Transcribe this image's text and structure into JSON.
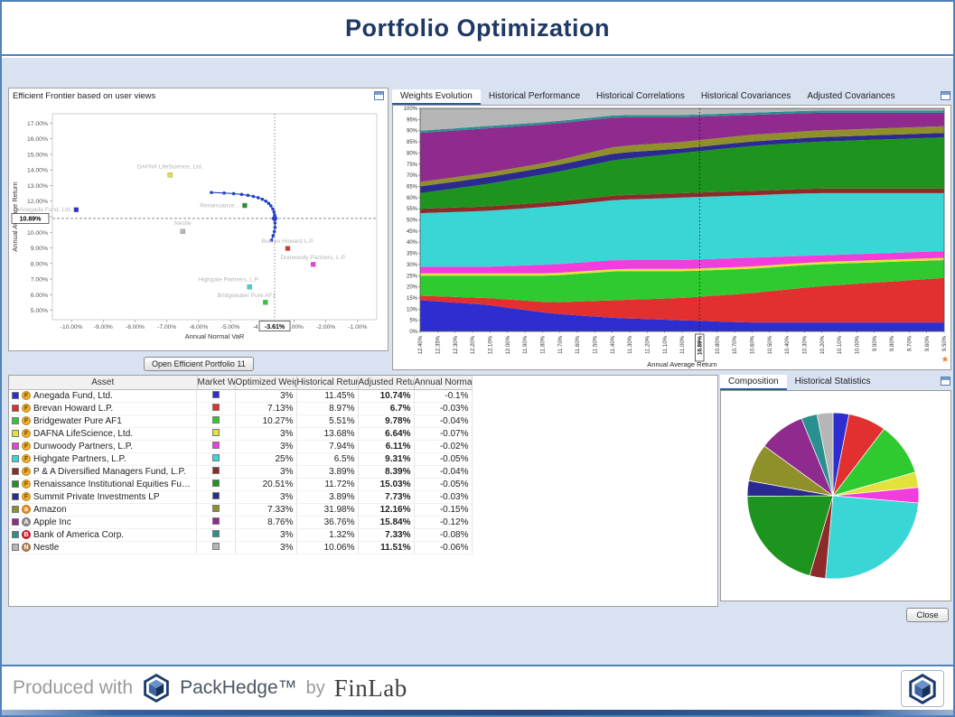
{
  "window": {
    "title": "Portfolio Optimization",
    "close_button": "Close",
    "footer": {
      "produced_with": "Produced with",
      "product": "PackHedge™",
      "by": "by",
      "company": "FinLab"
    }
  },
  "frontier": {
    "panel_title": "Efficient Frontier based on user views",
    "open_button": "Open Efficient Portfolio 11",
    "chart_data": {
      "type": "scatter",
      "xlabel": "Annual Normal VaR",
      "ylabel": "Annual Average Return",
      "xlim": [
        -10.6,
        -0.4
      ],
      "ylim": [
        4.4,
        17.6
      ],
      "x_ticks": [
        -10,
        -9,
        -8,
        -7,
        -6,
        -5,
        -4,
        -3,
        -2,
        -1
      ],
      "y_ticks": [
        17,
        16,
        15,
        14,
        13,
        12,
        11,
        10,
        9,
        8,
        7,
        6,
        5
      ],
      "highlight": {
        "x": -3.61,
        "y": 10.89,
        "x_label": "-3.61%",
        "y_label": "10.89%"
      },
      "points": [
        {
          "label": "Anegada Fund, Ltd.",
          "x": -9.85,
          "y": 11.45,
          "color": "#2d2dd0",
          "anchor": "end",
          "ldx": -5,
          "ldy": 2
        },
        {
          "label": "DAFNA LifeScience, Ltd.",
          "x": -6.9,
          "y": 13.68,
          "color": "#e2e23a",
          "ldy": -7
        },
        {
          "label": "Renaissance...",
          "x": -4.55,
          "y": 11.72,
          "color": "#1d941d",
          "anchor": "end",
          "ldx": -6,
          "ldy": 2
        },
        {
          "label": "Nestle",
          "x": -6.5,
          "y": 10.06,
          "color": "#b6b6b6",
          "ldy": -7
        },
        {
          "label": "Brevan Howard L.P.",
          "x": -3.2,
          "y": 8.97,
          "color": "#e23030",
          "ldy": -6
        },
        {
          "label": "Dunwoody Partners, L.P.",
          "x": -2.4,
          "y": 7.94,
          "color": "#f23cdc",
          "ldy": -6
        },
        {
          "label": "Highgate Partners, L.P.",
          "x": -4.4,
          "y": 6.5,
          "color": "#3ad6d6",
          "ldx": -23,
          "ldy": -6
        },
        {
          "label": "Bridgewater Pure AF1",
          "x": -3.9,
          "y": 5.51,
          "color": "#2fca2f",
          "ldx": -21,
          "ldy": -6
        }
      ],
      "frontier_line": [
        [
          -5.6,
          12.55
        ],
        [
          -5.2,
          12.52
        ],
        [
          -4.9,
          12.48
        ],
        [
          -4.65,
          12.43
        ],
        [
          -4.45,
          12.37
        ],
        [
          -4.28,
          12.3
        ],
        [
          -4.13,
          12.22
        ],
        [
          -4.0,
          12.12
        ],
        [
          -3.89,
          12.0
        ],
        [
          -3.8,
          11.86
        ],
        [
          -3.73,
          11.7
        ],
        [
          -3.67,
          11.5
        ],
        [
          -3.63,
          11.3
        ],
        [
          -3.61,
          11.1
        ],
        [
          -3.61,
          10.89
        ],
        [
          -3.6,
          10.6
        ],
        [
          -3.6,
          10.32
        ],
        [
          -3.62,
          10.05
        ],
        [
          -3.66,
          9.78
        ],
        [
          -3.71,
          9.5
        ]
      ]
    }
  },
  "weights": {
    "tabs": [
      "Weights Evolution",
      "Historical Performance",
      "Historical Correlations",
      "Historical Covariances",
      "Adjusted Covariances"
    ],
    "selected_tab": 0,
    "chart_data": {
      "type": "area",
      "stacked_percent": true,
      "xlabel": "Annual Average Return",
      "y_ticks": [
        "0%",
        "5%",
        "10%",
        "15%",
        "20%",
        "25%",
        "30%",
        "35%",
        "40%",
        "45%",
        "50%",
        "55%",
        "60%",
        "65%",
        "70%",
        "75%",
        "80%",
        "85%",
        "90%",
        "95%",
        "100%"
      ],
      "x_ticks": [
        "12.40%",
        "12.35%",
        "12.30%",
        "12.20%",
        "12.10%",
        "12.00%",
        "11.90%",
        "11.80%",
        "11.70%",
        "11.60%",
        "11.50%",
        "11.40%",
        "11.30%",
        "11.20%",
        "11.10%",
        "11.00%",
        "10.89%",
        "10.80%",
        "10.70%",
        "10.60%",
        "10.50%",
        "10.40%",
        "10.30%",
        "10.20%",
        "10.10%",
        "10.00%",
        "9.90%",
        "9.80%",
        "9.70%",
        "9.60%",
        "9.50%"
      ],
      "highlight_tick_index": 16,
      "sample_note": "series values are weight percentages sampled evenly across the x range, stacked to 100%",
      "series": [
        {
          "name": "Anegada Fund, Ltd.",
          "color": "#2d2dd0",
          "values": [
            14,
            12,
            8,
            6,
            5,
            4,
            4,
            4,
            4
          ]
        },
        {
          "name": "Brevan Howard L.P.",
          "color": "#e23030",
          "values": [
            2,
            3,
            5,
            8,
            10,
            13,
            16,
            18,
            20
          ]
        },
        {
          "name": "Bridgewater Pure AF1",
          "color": "#2fca2f",
          "values": [
            9,
            10,
            12,
            13,
            12,
            11,
            10,
            9,
            8
          ]
        },
        {
          "name": "DAFNA LifeScience, Ltd.",
          "color": "#e2e23a",
          "values": [
            1,
            1,
            1,
            1,
            1,
            1,
            1,
            1,
            1
          ]
        },
        {
          "name": "Dunwoody Partners, L.P.",
          "color": "#f23cdc",
          "values": [
            3,
            3,
            4,
            4,
            4,
            4,
            3,
            3,
            3
          ]
        },
        {
          "name": "Highgate Partners, L.P.",
          "color": "#3ad6d6",
          "values": [
            24,
            25,
            26,
            27,
            28,
            28,
            28,
            27,
            26
          ]
        },
        {
          "name": "P & A Diversified Managers Fund, L.P.",
          "color": "#8f2a2a",
          "values": [
            2,
            2,
            2,
            2,
            2,
            2,
            2,
            2,
            2
          ]
        },
        {
          "name": "Renaissance Institutional Equities Fund",
          "color": "#1d941d",
          "values": [
            7,
            10,
            13,
            16,
            18,
            20,
            21,
            22,
            23
          ]
        },
        {
          "name": "Summit Private Investments LP",
          "color": "#2a2a90",
          "values": [
            3,
            3,
            3,
            3,
            2,
            2,
            2,
            2,
            2
          ]
        },
        {
          "name": "Amazon",
          "color": "#90902a",
          "values": [
            2,
            2,
            2,
            3,
            3,
            3,
            3,
            3,
            3
          ]
        },
        {
          "name": "Apple Inc",
          "color": "#8f2a8f",
          "values": [
            22,
            20,
            17,
            13,
            11,
            9,
            8,
            7,
            6
          ]
        },
        {
          "name": "Bank of America Corp.",
          "color": "#2a8f8f",
          "values": [
            1,
            1,
            1,
            1,
            1,
            1,
            1,
            1,
            1
          ]
        },
        {
          "name": "Nestle",
          "color": "#b6b6b6",
          "values": [
            10,
            8,
            6,
            3,
            3,
            2,
            1,
            1,
            1
          ]
        }
      ]
    }
  },
  "table": {
    "columns": [
      "Asset",
      "Market Weight",
      "Optimized Weig...",
      "Historical Return",
      "Adjusted Return",
      "Annual Normal ..."
    ],
    "rows": [
      {
        "name": "Anegada Fund, Ltd.",
        "color": "#2d2dd0",
        "icon": {
          "type": "fund",
          "label": "F",
          "bg": "#f0b030",
          "fg": "#6d4a00"
        },
        "optimized_weight": "3%",
        "historical_return": "11.45%",
        "adjusted_return": "10.74%",
        "annual_normal": "-0.1%"
      },
      {
        "name": "Brevan Howard L.P.",
        "color": "#e23030",
        "icon": {
          "type": "fund",
          "label": "F",
          "bg": "#f0b030",
          "fg": "#6d4a00"
        },
        "optimized_weight": "7.13%",
        "historical_return": "8.97%",
        "adjusted_return": "6.7%",
        "annual_normal": "-0.03%"
      },
      {
        "name": "Bridgewater Pure AF1",
        "color": "#2fca2f",
        "icon": {
          "type": "fund",
          "label": "F",
          "bg": "#f0b030",
          "fg": "#6d4a00"
        },
        "optimized_weight": "10.27%",
        "historical_return": "5.51%",
        "adjusted_return": "9.78%",
        "annual_normal": "-0.04%"
      },
      {
        "name": "DAFNA LifeScience, Ltd.",
        "color": "#e2e23a",
        "icon": {
          "type": "fund",
          "label": "F",
          "bg": "#f0b030",
          "fg": "#6d4a00"
        },
        "optimized_weight": "3%",
        "historical_return": "13.68%",
        "adjusted_return": "6.64%",
        "annual_normal": "-0.07%"
      },
      {
        "name": "Dunwoody Partners, L.P.",
        "color": "#f23cdc",
        "icon": {
          "type": "fund",
          "label": "F",
          "bg": "#f0b030",
          "fg": "#6d4a00"
        },
        "optimized_weight": "3%",
        "historical_return": "7.94%",
        "adjusted_return": "6.11%",
        "annual_normal": "-0.02%"
      },
      {
        "name": "Highgate Partners, L.P.",
        "color": "#3ad6d6",
        "icon": {
          "type": "fund",
          "label": "F",
          "bg": "#f0b030",
          "fg": "#6d4a00"
        },
        "optimized_weight": "25%",
        "historical_return": "6.5%",
        "adjusted_return": "9.31%",
        "annual_normal": "-0.05%"
      },
      {
        "name": "P & A Diversified Managers Fund, L.P.",
        "color": "#8f2a2a",
        "icon": {
          "type": "fund",
          "label": "F",
          "bg": "#f0b030",
          "fg": "#6d4a00"
        },
        "optimized_weight": "3%",
        "historical_return": "3.89%",
        "adjusted_return": "8.39%",
        "annual_normal": "-0.04%"
      },
      {
        "name": "Renaissance Institutional Equities Fund...",
        "color": "#1d941d",
        "icon": {
          "type": "fund",
          "label": "F",
          "bg": "#f0b030",
          "fg": "#6d4a00"
        },
        "optimized_weight": "20.51%",
        "historical_return": "11.72%",
        "adjusted_return": "15.03%",
        "annual_normal": "-0.05%"
      },
      {
        "name": "Summit Private Investments LP",
        "color": "#2a2a90",
        "icon": {
          "type": "fund",
          "label": "F",
          "bg": "#f0b030",
          "fg": "#6d4a00"
        },
        "optimized_weight": "3%",
        "historical_return": "3.89%",
        "adjusted_return": "7.73%",
        "annual_normal": "-0.03%"
      },
      {
        "name": "Amazon",
        "color": "#90902a",
        "icon": {
          "type": "stock",
          "label": "a",
          "bg": "#f19022",
          "fg": "#ffffff"
        },
        "optimized_weight": "7.33%",
        "historical_return": "31.98%",
        "adjusted_return": "12.16%",
        "annual_normal": "-0.15%"
      },
      {
        "name": "Apple Inc",
        "color": "#8f2a8f",
        "icon": {
          "type": "stock",
          "label": "A",
          "bg": "#8e8e8e",
          "fg": "#ffffff"
        },
        "optimized_weight": "8.76%",
        "historical_return": "36.76%",
        "adjusted_return": "15.84%",
        "annual_normal": "-0.12%"
      },
      {
        "name": "Bank of America Corp.",
        "color": "#2a8f8f",
        "icon": {
          "type": "stock",
          "label": "B",
          "bg": "#d8252f",
          "fg": "#ffffff"
        },
        "optimized_weight": "3%",
        "historical_return": "1.32%",
        "adjusted_return": "7.33%",
        "annual_normal": "-0.08%"
      },
      {
        "name": "Nestle",
        "color": "#b6b6b6",
        "icon": {
          "type": "stock",
          "label": "N",
          "bg": "#b5854f",
          "fg": "#ffffff"
        },
        "optimized_weight": "3%",
        "historical_return": "10.06%",
        "adjusted_return": "11.51%",
        "annual_normal": "-0.06%"
      }
    ]
  },
  "composition": {
    "tabs": [
      "Composition",
      "Historical Statistics"
    ],
    "selected_tab": 0,
    "chart_data": {
      "type": "pie",
      "slices": [
        {
          "name": "Anegada Fund, Ltd.",
          "value": 3,
          "color": "#2d2dd0"
        },
        {
          "name": "Brevan Howard L.P.",
          "value": 7.13,
          "color": "#e23030"
        },
        {
          "name": "Bridgewater Pure AF1",
          "value": 10.27,
          "color": "#2fca2f"
        },
        {
          "name": "DAFNA LifeScience, Ltd.",
          "value": 3,
          "color": "#e2e23a"
        },
        {
          "name": "Dunwoody Partners, L.P.",
          "value": 3,
          "color": "#f23cdc"
        },
        {
          "name": "Highgate Partners, L.P.",
          "value": 25,
          "color": "#3ad6d6"
        },
        {
          "name": "P & A Diversified Managers Fund, L.P.",
          "value": 3,
          "color": "#8f2a2a"
        },
        {
          "name": "Renaissance Institutional Equities Fund",
          "value": 20.51,
          "color": "#1d941d"
        },
        {
          "name": "Summit Private Investments LP",
          "value": 3,
          "color": "#2a2a90"
        },
        {
          "name": "Amazon",
          "value": 7.33,
          "color": "#90902a"
        },
        {
          "name": "Apple Inc",
          "value": 8.76,
          "color": "#8f2a8f"
        },
        {
          "name": "Bank of America Corp.",
          "value": 3,
          "color": "#2a8f8f"
        },
        {
          "name": "Nestle",
          "value": 3,
          "color": "#b6b6b6"
        }
      ]
    }
  }
}
